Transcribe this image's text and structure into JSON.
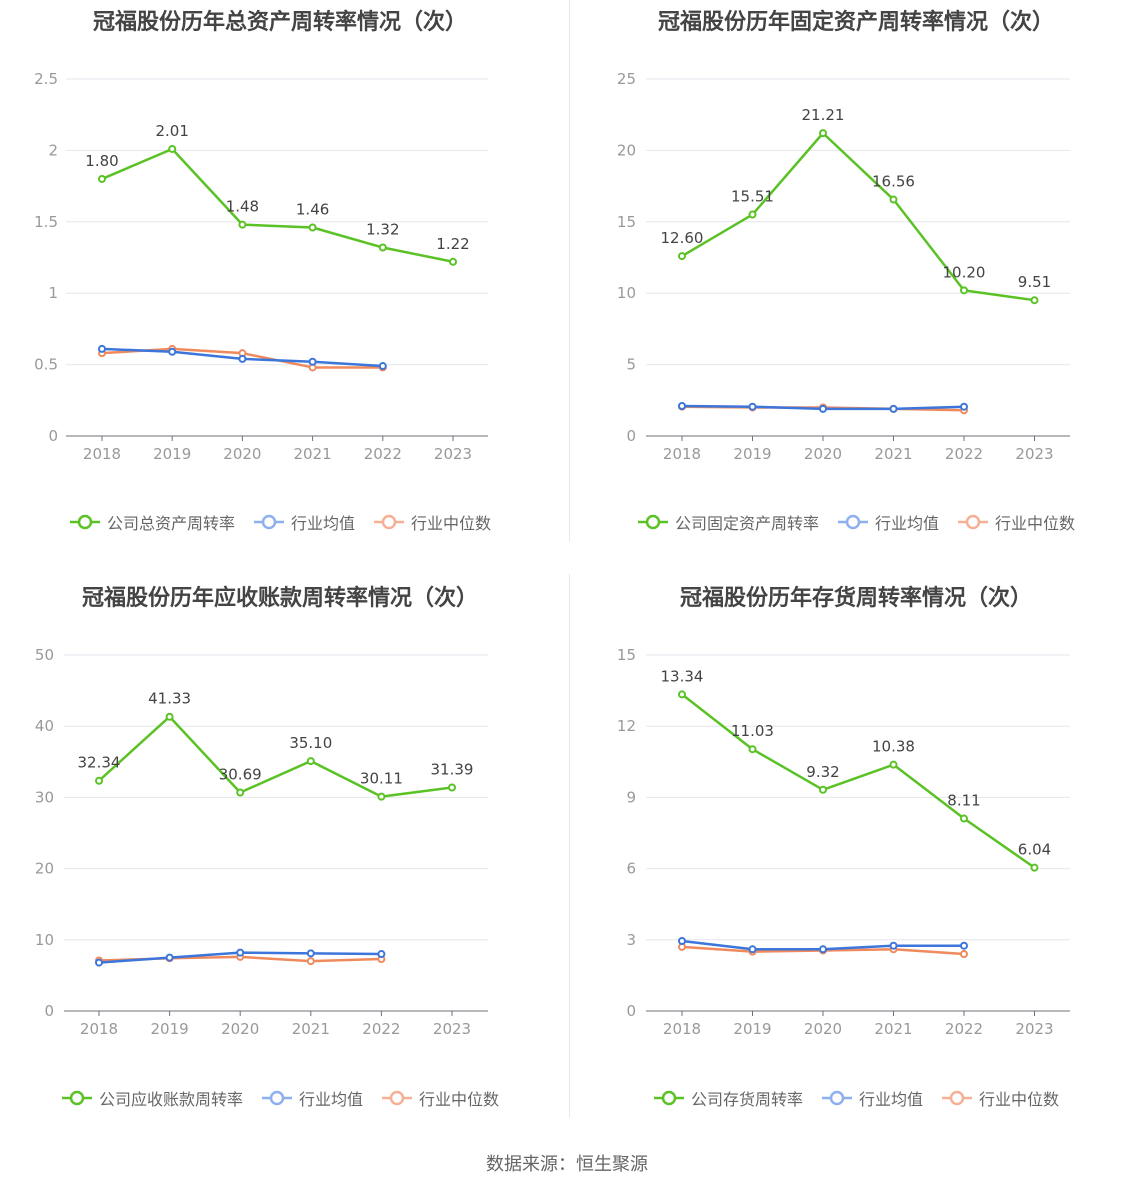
{
  "colors": {
    "company": "#5ac225",
    "avg": "#3c76db",
    "median": "#f08a5d",
    "avg_legend": "#8fb0ee",
    "median_legend": "#f5b096",
    "grid": "#e6e6ee",
    "axis": "#999999",
    "text": "#666666"
  },
  "footer": {
    "source": "数据来源：恒生聚源"
  },
  "chart_data": [
    {
      "type": "line",
      "title": "冠福股份历年总资产周转率情况（次）",
      "categories": [
        "2018",
        "2019",
        "2020",
        "2021",
        "2022",
        "2023"
      ],
      "ylim": [
        0,
        2.5
      ],
      "yticks": [
        "0",
        "0.5",
        "1",
        "1.5",
        "2",
        "2.5"
      ],
      "ytick_values": [
        0,
        0.5,
        1,
        1.5,
        2,
        2.5
      ],
      "legend_position": "bottom",
      "series": [
        {
          "name": "公司总资产周转率",
          "values": [
            1.8,
            2.01,
            1.48,
            1.46,
            1.32,
            1.22
          ],
          "labels": [
            "1.80",
            "2.01",
            "1.48",
            "1.46",
            "1.32",
            "1.22"
          ]
        },
        {
          "name": "行业均值",
          "values": [
            0.61,
            0.59,
            0.54,
            0.52,
            0.49,
            null
          ]
        },
        {
          "name": "行业中位数",
          "values": [
            0.58,
            0.61,
            0.58,
            0.48,
            0.48,
            null
          ]
        }
      ]
    },
    {
      "type": "line",
      "title": "冠福股份历年固定资产周转率情况（次）",
      "categories": [
        "2018",
        "2019",
        "2020",
        "2021",
        "2022",
        "2023"
      ],
      "ylim": [
        0,
        25
      ],
      "yticks": [
        "0",
        "5",
        "10",
        "15",
        "20",
        "25"
      ],
      "ytick_values": [
        0,
        5,
        10,
        15,
        20,
        25
      ],
      "legend_position": "bottom",
      "series": [
        {
          "name": "公司固定资产周转率",
          "values": [
            12.6,
            15.51,
            21.21,
            16.56,
            10.2,
            9.51
          ],
          "labels": [
            "12.60",
            "15.51",
            "21.21",
            "16.56",
            "10.20",
            "9.51"
          ]
        },
        {
          "name": "行业均值",
          "values": [
            2.1,
            2.05,
            1.9,
            1.9,
            2.05,
            null
          ]
        },
        {
          "name": "行业中位数",
          "values": [
            2.05,
            2.0,
            2.0,
            1.9,
            1.8,
            null
          ]
        }
      ]
    },
    {
      "type": "line",
      "title": "冠福股份历年应收账款周转率情况（次）",
      "categories": [
        "2018",
        "2019",
        "2020",
        "2021",
        "2022",
        "2023"
      ],
      "ylim": [
        0,
        50
      ],
      "yticks": [
        "0",
        "10",
        "20",
        "30",
        "40",
        "50"
      ],
      "ytick_values": [
        0,
        10,
        20,
        30,
        40,
        50
      ],
      "legend_position": "bottom",
      "series": [
        {
          "name": "公司应收账款周转率",
          "values": [
            32.34,
            41.33,
            30.69,
            35.1,
            30.11,
            31.39
          ],
          "labels": [
            "32.34",
            "41.33",
            "30.69",
            "35.10",
            "30.11",
            "31.39"
          ]
        },
        {
          "name": "行业均值",
          "values": [
            6.8,
            7.5,
            8.2,
            8.1,
            8.0,
            null
          ]
        },
        {
          "name": "行业中位数",
          "values": [
            7.1,
            7.4,
            7.6,
            7.0,
            7.3,
            null
          ]
        }
      ]
    },
    {
      "type": "line",
      "title": "冠福股份历年存货周转率情况（次）",
      "categories": [
        "2018",
        "2019",
        "2020",
        "2021",
        "2022",
        "2023"
      ],
      "ylim": [
        0,
        15
      ],
      "yticks": [
        "0",
        "3",
        "6",
        "9",
        "12",
        "15"
      ],
      "ytick_values": [
        0,
        3,
        6,
        9,
        12,
        15
      ],
      "legend_position": "bottom",
      "series": [
        {
          "name": "公司存货周转率",
          "values": [
            13.34,
            11.03,
            9.32,
            10.38,
            8.11,
            6.04
          ],
          "labels": [
            "13.34",
            "11.03",
            "9.32",
            "10.38",
            "8.11",
            "6.04"
          ]
        },
        {
          "name": "行业均值",
          "values": [
            2.95,
            2.6,
            2.6,
            2.75,
            2.75,
            null
          ]
        },
        {
          "name": "行业中位数",
          "values": [
            2.7,
            2.5,
            2.55,
            2.6,
            2.4,
            null
          ]
        }
      ]
    }
  ]
}
